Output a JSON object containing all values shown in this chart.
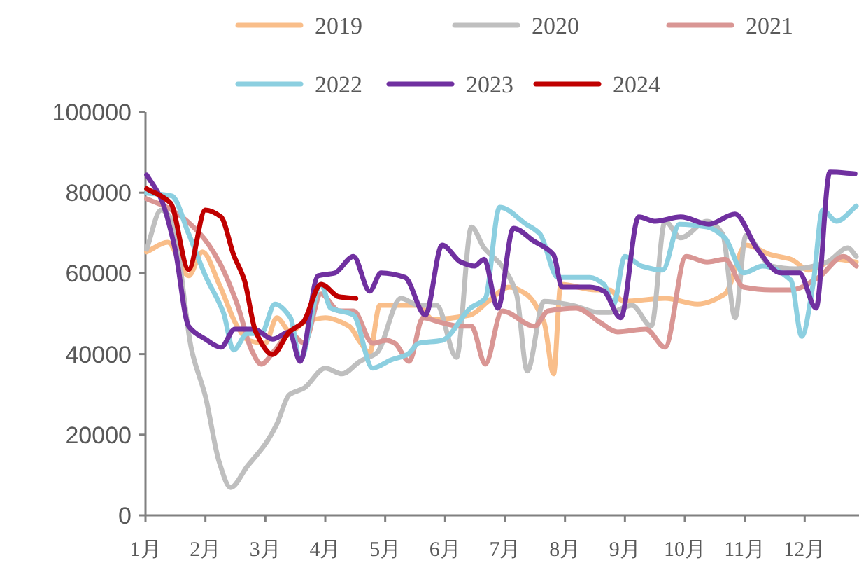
{
  "chart_data": {
    "type": "line",
    "xlim": [
      1,
      12.86
    ],
    "xticks": [
      {
        "value": 1,
        "label": "1月"
      },
      {
        "value": 2,
        "label": "2月"
      },
      {
        "value": 3,
        "label": "3月"
      },
      {
        "value": 4,
        "label": "4月"
      },
      {
        "value": 5,
        "label": "5月"
      },
      {
        "value": 6,
        "label": "6月"
      },
      {
        "value": 7,
        "label": "7月"
      },
      {
        "value": 8,
        "label": "8月"
      },
      {
        "value": 9,
        "label": "9月"
      },
      {
        "value": 10,
        "label": "10月"
      },
      {
        "value": 11,
        "label": "11月"
      },
      {
        "value": 12,
        "label": "12月"
      }
    ],
    "ylim": [
      0,
      100000
    ],
    "yticks": [
      0,
      20000,
      40000,
      60000,
      80000,
      100000
    ],
    "legend": "top",
    "grid": false,
    "marker": "none",
    "line_style": "solid",
    "series": [
      {
        "name": "2019",
        "color": "#f9be8a",
        "x": [
          1.02,
          1.37,
          1.72,
          1.95,
          2.23,
          2.53,
          2.72,
          3.0,
          3.19,
          3.42,
          3.65,
          4.0,
          4.4,
          4.58,
          4.74,
          4.91,
          5.56,
          5.79,
          6.42,
          6.72,
          7.07,
          7.35,
          7.65,
          7.81,
          7.93,
          8.51,
          8.74,
          8.98,
          9.67,
          10.21,
          10.67,
          11.02,
          11.44,
          11.77,
          12.07,
          12.53,
          12.86
        ],
        "values": [
          65300,
          67700,
          59400,
          65300,
          57300,
          46900,
          43400,
          42700,
          49000,
          45500,
          47900,
          49000,
          46900,
          43000,
          40300,
          52100,
          52100,
          48600,
          49700,
          53100,
          56600,
          54900,
          47900,
          35100,
          57300,
          55900,
          55900,
          53100,
          53800,
          52400,
          54900,
          67000,
          64600,
          63500,
          60800,
          63500,
          62800
        ]
      },
      {
        "name": "2020",
        "color": "#bfbfbf",
        "x": [
          1.02,
          1.26,
          1.44,
          1.77,
          2.0,
          2.23,
          2.42,
          2.7,
          3.0,
          3.19,
          3.4,
          3.65,
          4.0,
          4.28,
          4.58,
          4.86,
          5.26,
          5.56,
          5.86,
          6.19,
          6.44,
          6.65,
          6.95,
          7.19,
          7.37,
          7.65,
          8.12,
          8.58,
          8.74,
          9.12,
          9.44,
          9.67,
          9.93,
          10.37,
          10.63,
          10.84,
          11.02,
          11.44,
          11.84,
          12.37,
          12.72,
          12.86
        ],
        "values": [
          66000,
          75700,
          73300,
          41000,
          29500,
          13200,
          6900,
          12200,
          17700,
          22600,
          29900,
          31600,
          36500,
          35100,
          38200,
          40300,
          53800,
          52100,
          52100,
          39200,
          71500,
          66300,
          61800,
          54900,
          35800,
          53100,
          52100,
          50300,
          50300,
          52100,
          46900,
          72900,
          68800,
          72900,
          69800,
          49000,
          69400,
          61800,
          61100,
          62800,
          66300,
          64200
        ]
      },
      {
        "name": "2021",
        "color": "#d99694",
        "x": [
          1.02,
          1.44,
          1.91,
          2.23,
          2.53,
          2.77,
          2.93,
          3.16,
          3.42,
          3.65,
          3.93,
          4.23,
          4.47,
          4.79,
          5.02,
          5.16,
          5.4,
          5.63,
          5.91,
          6.26,
          6.44,
          6.67,
          6.95,
          7.49,
          7.72,
          8.19,
          8.58,
          8.88,
          9.35,
          9.67,
          10.02,
          10.37,
          10.67,
          10.98,
          11.44,
          11.77,
          12.23,
          12.65,
          12.86
        ],
        "values": [
          78500,
          75700,
          69800,
          62800,
          52400,
          41000,
          37500,
          41000,
          45100,
          42700,
          54900,
          50700,
          50700,
          42700,
          43400,
          42700,
          38200,
          49000,
          47900,
          46900,
          46900,
          37500,
          50700,
          46900,
          50700,
          51400,
          47900,
          45500,
          46200,
          41700,
          64200,
          62800,
          63500,
          56600,
          55900,
          55900,
          59000,
          64200,
          61800
        ]
      },
      {
        "name": "2022",
        "color": "#8ccfe0",
        "x": [
          1.02,
          1.44,
          1.72,
          2.0,
          2.3,
          2.47,
          2.7,
          2.93,
          3.16,
          3.42,
          3.58,
          3.93,
          4.09,
          4.47,
          4.79,
          5.09,
          5.37,
          5.56,
          5.95,
          6.42,
          6.67,
          6.91,
          7.35,
          7.58,
          7.88,
          8.42,
          8.65,
          8.81,
          9.0,
          9.28,
          9.63,
          9.91,
          10.37,
          10.67,
          10.98,
          11.3,
          11.77,
          11.95,
          12.14,
          12.3,
          12.53,
          12.86
        ],
        "values": [
          79900,
          79200,
          69800,
          59400,
          50300,
          41000,
          45100,
          45100,
          52400,
          49000,
          38500,
          57300,
          51400,
          49700,
          36500,
          38500,
          39900,
          42700,
          43400,
          51400,
          53800,
          76400,
          72200,
          69800,
          59000,
          59000,
          57300,
          52400,
          64200,
          61800,
          60800,
          72200,
          71500,
          68800,
          60100,
          61800,
          58300,
          44400,
          57300,
          75700,
          72900,
          76700
        ]
      },
      {
        "name": "2023",
        "color": "#7030a0",
        "x": [
          1.02,
          1.26,
          1.49,
          1.72,
          2.0,
          2.26,
          2.49,
          2.81,
          3.12,
          3.4,
          3.58,
          3.88,
          4.16,
          4.47,
          4.74,
          4.93,
          5.33,
          5.67,
          5.95,
          6.26,
          6.49,
          6.65,
          6.88,
          7.14,
          7.47,
          7.81,
          7.95,
          8.42,
          8.65,
          8.93,
          9.23,
          9.51,
          9.93,
          10.4,
          10.84,
          11.21,
          11.6,
          11.91,
          12.19,
          12.42,
          12.84
        ],
        "values": [
          84400,
          78500,
          66300,
          46900,
          43700,
          41700,
          46200,
          46200,
          43700,
          45500,
          38200,
          59400,
          60100,
          64200,
          55600,
          60100,
          59000,
          49700,
          67000,
          62800,
          61800,
          63500,
          51400,
          71200,
          68100,
          64600,
          56600,
          56600,
          55600,
          49000,
          74000,
          72900,
          74000,
          72200,
          74700,
          66000,
          60100,
          60100,
          51400,
          85100,
          84700
        ]
      },
      {
        "name": "2024",
        "color": "#c00000",
        "x": [
          1.02,
          1.42,
          1.72,
          2.0,
          2.26,
          2.47,
          2.65,
          2.84,
          3.12,
          3.4,
          3.63,
          3.93,
          4.23,
          4.51
        ],
        "values": [
          81000,
          77400,
          61000,
          75700,
          74000,
          64600,
          58300,
          45500,
          39900,
          45500,
          47900,
          57300,
          54200,
          53800
        ]
      }
    ]
  }
}
